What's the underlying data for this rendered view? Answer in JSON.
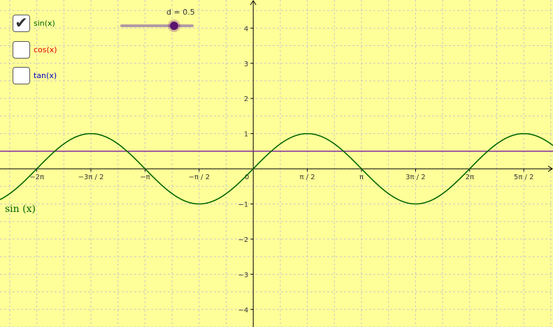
{
  "colors": {
    "background": "#ffff99",
    "grid": "#c8c8c8",
    "axis": "#000000",
    "sin": "#006400",
    "cos": "#dc0000",
    "tan": "#0000cc",
    "d_line": "#7f2aa0",
    "slider_knob": "#5a1470"
  },
  "checkboxes": [
    {
      "label": "sin(x)",
      "checked": true,
      "check_glyph": "✔",
      "color": "#006400"
    },
    {
      "label": "cos(x)",
      "checked": false,
      "check_glyph": "",
      "color": "#dc0000"
    },
    {
      "label": "tan(x)",
      "checked": false,
      "check_glyph": "",
      "color": "#0000cc"
    }
  ],
  "slider": {
    "label": "d = 0.5",
    "value": 0.5
  },
  "curve_label": "sin (x)",
  "chart_data": {
    "type": "line",
    "xlim": [
      -2.34,
      2.77
    ],
    "ylim": [
      -4.5,
      4.8
    ],
    "x_unit": "π",
    "grid": true,
    "x_ticks": [
      {
        "value": -2,
        "label": "−2π"
      },
      {
        "value": -1.5,
        "label": "−3π / 2"
      },
      {
        "value": -1,
        "label": "−π"
      },
      {
        "value": -0.5,
        "label": "−π / 2"
      },
      {
        "value": 0,
        "label": "0"
      },
      {
        "value": 0.5,
        "label": "π / 2"
      },
      {
        "value": 1,
        "label": "π"
      },
      {
        "value": 1.5,
        "label": "3π / 2"
      },
      {
        "value": 2,
        "label": "2π"
      },
      {
        "value": 2.5,
        "label": "5π / 2"
      }
    ],
    "y_ticks": [
      {
        "value": 4,
        "label": "4"
      },
      {
        "value": 3,
        "label": "3"
      },
      {
        "value": 2,
        "label": "2"
      },
      {
        "value": 1,
        "label": "1"
      },
      {
        "value": -1,
        "label": "−1"
      },
      {
        "value": -2,
        "label": "−2"
      },
      {
        "value": -3,
        "label": "−3"
      },
      {
        "value": -4,
        "label": "−4"
      }
    ],
    "series": [
      {
        "name": "sin(x)",
        "function": "sin",
        "visible": true
      },
      {
        "name": "cos(x)",
        "function": "cos",
        "visible": false
      },
      {
        "name": "tan(x)",
        "function": "tan",
        "visible": false
      }
    ],
    "horizontal_line": {
      "y": 0.5
    }
  }
}
